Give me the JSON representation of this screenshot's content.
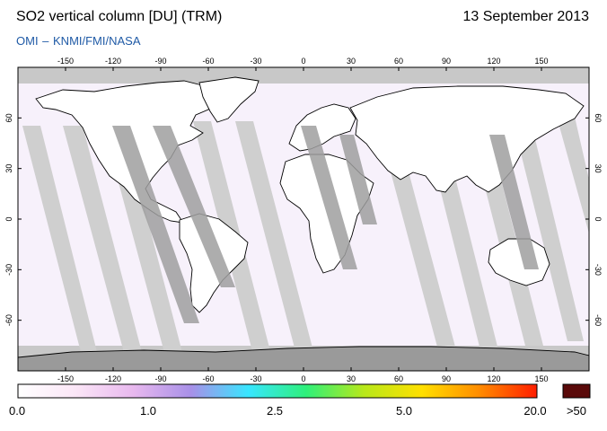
{
  "header": {
    "title": "SO2 vertical column [DU] (TRM)",
    "date": "13 September 2013",
    "credit": "OMI  –  KNMI/FMI/NASA"
  },
  "map": {
    "lon_ticks": [
      "-150",
      "-120",
      "-90",
      "-60",
      "-30",
      "0",
      "30",
      "60",
      "90",
      "120",
      "150"
    ],
    "lat_ticks_left": [
      "60",
      "30",
      "0",
      "-30",
      "-60"
    ],
    "lat_ticks_right": [
      "60",
      "30",
      "0",
      "-30",
      "-60"
    ],
    "lon_values": [
      -150,
      -120,
      -90,
      -60,
      -30,
      0,
      30,
      60,
      90,
      120,
      150
    ],
    "lat_values": [
      60,
      30,
      0,
      -30,
      -60
    ],
    "lon_range": [
      -180,
      180
    ],
    "lat_range": [
      -90,
      90
    ],
    "colors": {
      "ocean": "#f7f1fb",
      "land": "#ffffff",
      "swath_gap": "#cfcfcf",
      "swath_gap_dark": "#9f9f9f",
      "polar_gray": "#c8c8c8",
      "coast": "#000000"
    }
  },
  "colorbar": {
    "labels": [
      "0.0",
      "1.0",
      "2.5",
      "5.0",
      "20.0",
      ">50"
    ],
    "label_values": [
      0.0,
      1.0,
      2.5,
      5.0,
      20.0
    ],
    "overflow_color": "#5a0a0a",
    "stops": [
      "#ffffff",
      "#fbe6f7",
      "#e8b8ee",
      "#a890e8",
      "#38e6ff",
      "#2ef07a",
      "#b8e81a",
      "#ffe000",
      "#ff8c00",
      "#ff1e00"
    ]
  }
}
